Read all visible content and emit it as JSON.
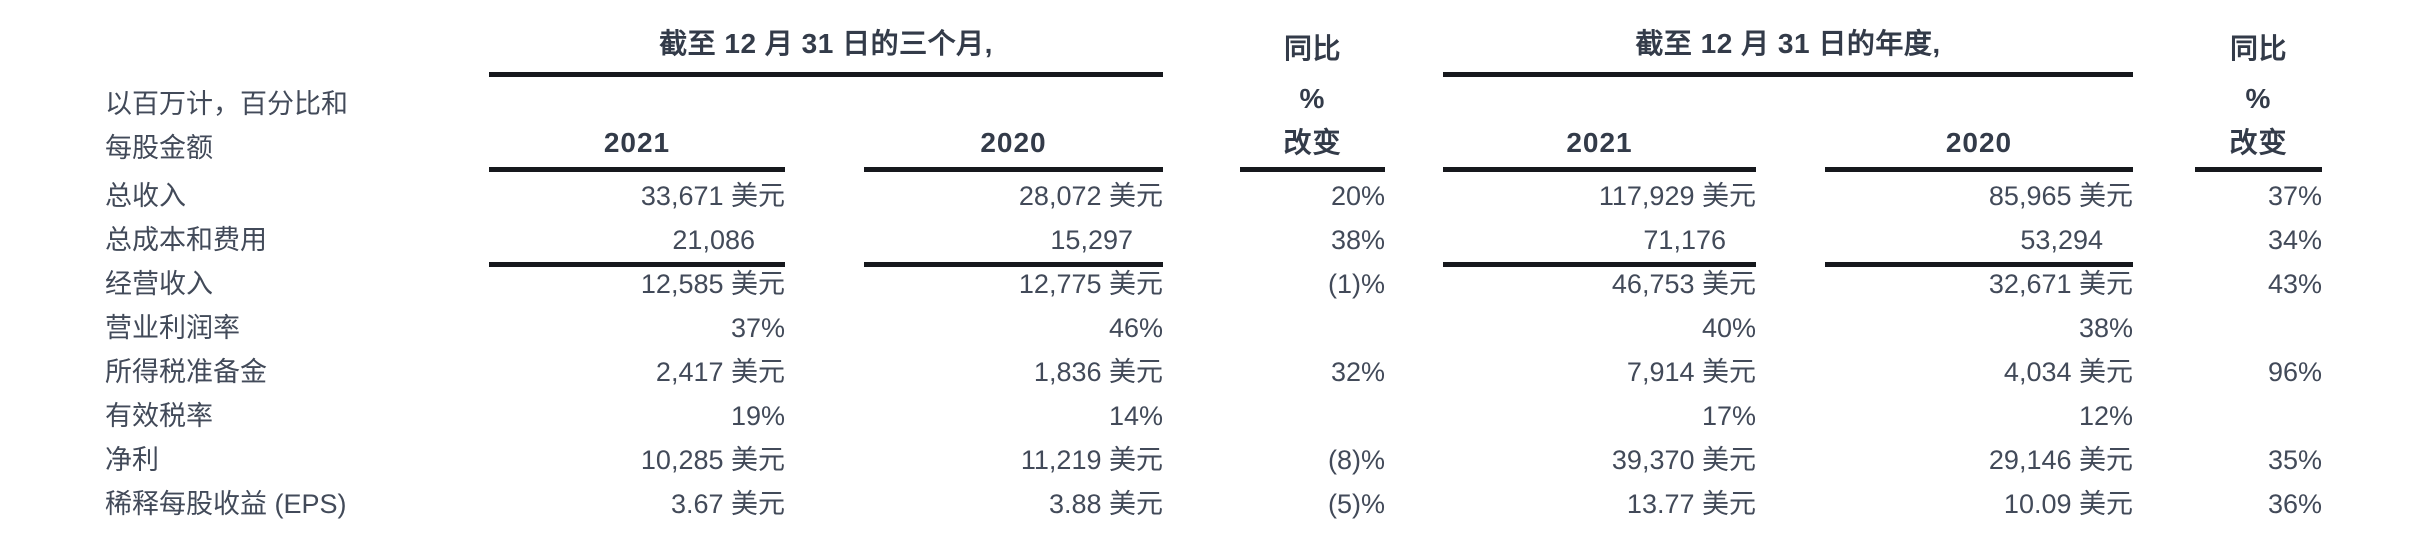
{
  "table": {
    "note_line1": "以百万计，百分比和",
    "note_line2": "每股金额",
    "groups": {
      "quarter_title": "截至 12 月 31 日的三个月,",
      "annual_title": "截至 12 月 31 日的年度,",
      "year_col_2021": "2021",
      "year_col_2020": "2020",
      "yoy_line1": "同比",
      "yoy_line2": "%",
      "yoy_line3": "改变"
    },
    "rows": [
      {
        "label": "总收入",
        "q2021": "33,671 美元",
        "q2020": "28,072 美元",
        "yoy_q": "20%",
        "a2021": "117,929 美元",
        "a2020": "85,965 美元",
        "yoy_a": "37%"
      },
      {
        "label": "总成本和费用",
        "q2021": "21,086",
        "q2020": "15,297",
        "yoy_q": "38%",
        "a2021": "71,176",
        "a2020": "53,294",
        "yoy_a": "34%"
      },
      {
        "label": "经营收入",
        "q2021": "12,585 美元",
        "q2020": "12,775 美元",
        "yoy_q": "(1)%",
        "a2021": "46,753 美元",
        "a2020": "32,671 美元",
        "yoy_a": "43%"
      },
      {
        "label": "营业利润率",
        "q2021": "37%",
        "q2020": "46%",
        "yoy_q": "",
        "a2021": "40%",
        "a2020": "38%",
        "yoy_a": ""
      },
      {
        "label": "所得税准备金",
        "q2021": "2,417 美元",
        "q2020": "1,836 美元",
        "yoy_q": "32%",
        "a2021": "7,914 美元",
        "a2020": "4,034 美元",
        "yoy_a": "96%"
      },
      {
        "label": "有效税率",
        "q2021": "19%",
        "q2020": "14%",
        "yoy_q": "",
        "a2021": "17%",
        "a2020": "12%",
        "yoy_a": ""
      },
      {
        "label": "净利",
        "q2021": "10,285 美元",
        "q2020": "11,219 美元",
        "yoy_q": "(8)%",
        "a2021": "39,370 美元",
        "a2020": "29,146 美元",
        "yoy_a": "35%"
      },
      {
        "label": "稀释每股收益 (EPS)",
        "q2021": "3.67 美元",
        "q2020": "3.88 美元",
        "yoy_q": "(5)%",
        "a2021": "13.77 美元",
        "a2020": "10.09 美元",
        "yoy_a": "36%"
      }
    ]
  },
  "colors": {
    "text": "#424A59",
    "heading": "#333B49",
    "rule": "#16181D",
    "background": "#FFFFFF"
  }
}
